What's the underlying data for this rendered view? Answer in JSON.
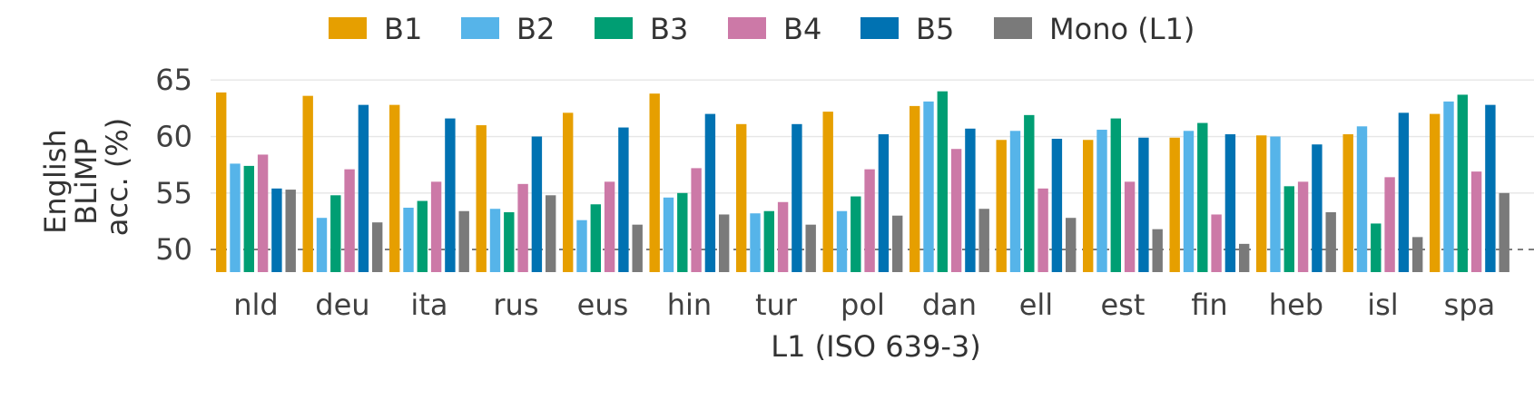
{
  "chart_data": {
    "type": "bar",
    "title": "",
    "xlabel": "L1 (ISO 639-3)",
    "ylabel_lines": [
      "English",
      "BLiMP",
      "acc. (%)"
    ],
    "categories": [
      "nld",
      "deu",
      "ita",
      "rus",
      "eus",
      "hin",
      "tur",
      "pol",
      "dan",
      "ell",
      "est",
      "fin",
      "heb",
      "isl",
      "spa"
    ],
    "y_ticks": [
      50,
      55,
      60,
      65
    ],
    "ylim": [
      48,
      65.5
    ],
    "baseline": 50,
    "grid": "horizontal",
    "legend_position": "top",
    "series": [
      {
        "name": "B1",
        "color": "#E69F00",
        "values": [
          63.9,
          63.6,
          62.8,
          61.0,
          62.1,
          63.8,
          61.1,
          62.2,
          62.7,
          59.7,
          59.7,
          59.9,
          60.1,
          60.2,
          62.0
        ]
      },
      {
        "name": "B2",
        "color": "#56B4E9",
        "values": [
          57.6,
          52.8,
          53.7,
          53.6,
          52.6,
          54.6,
          53.2,
          53.4,
          63.1,
          60.5,
          60.6,
          60.5,
          60.0,
          60.9,
          63.1
        ]
      },
      {
        "name": "B3",
        "color": "#009E73",
        "values": [
          57.4,
          54.8,
          54.3,
          53.3,
          54.0,
          55.0,
          53.4,
          54.7,
          64.0,
          61.9,
          61.6,
          61.2,
          55.6,
          52.3,
          63.7
        ]
      },
      {
        "name": "B4",
        "color": "#CC79A7",
        "values": [
          58.4,
          57.1,
          56.0,
          55.8,
          56.0,
          57.2,
          54.2,
          57.1,
          58.9,
          55.4,
          56.0,
          53.1,
          56.0,
          56.4,
          56.9
        ]
      },
      {
        "name": "B5",
        "color": "#0072B2",
        "values": [
          55.4,
          62.8,
          61.6,
          60.0,
          60.8,
          62.0,
          61.1,
          60.2,
          60.7,
          59.8,
          59.9,
          60.2,
          59.3,
          62.1,
          62.8
        ]
      },
      {
        "name": "Mono (L1)",
        "color": "#7A7A7A",
        "values": [
          55.3,
          52.4,
          53.4,
          54.8,
          52.2,
          53.1,
          52.2,
          53.0,
          53.6,
          52.8,
          51.8,
          50.5,
          53.3,
          51.1,
          55.0
        ]
      }
    ]
  }
}
